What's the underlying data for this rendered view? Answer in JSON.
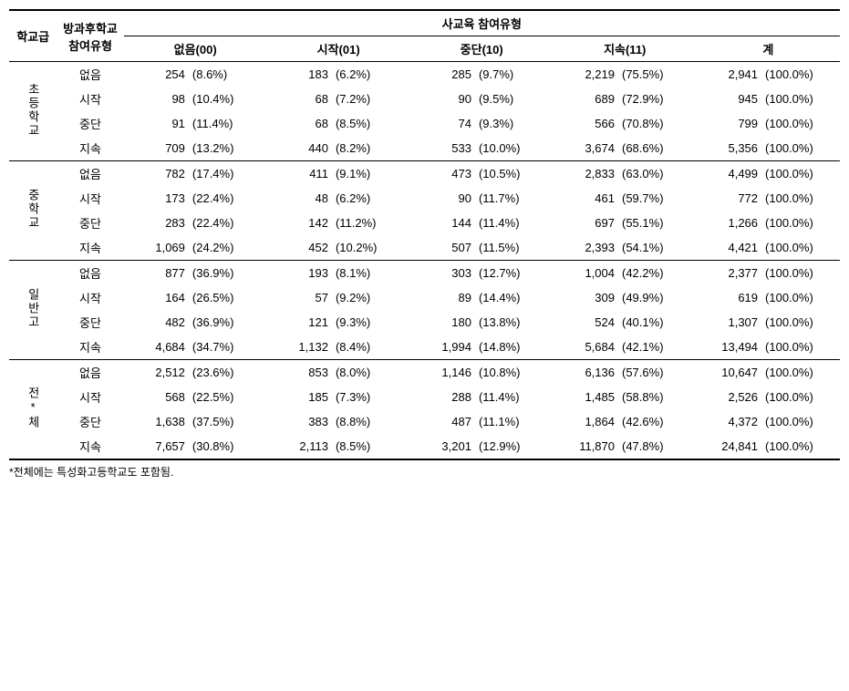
{
  "headers": {
    "level": "학교급",
    "afterSchoolType": "방과후학교 참여유형",
    "privateEduType": "사교육 참여유형",
    "none": "없음(00)",
    "start": "시작(01)",
    "stop": "중단(10)",
    "continue": "지속(11)",
    "total": "계"
  },
  "rowLabels": {
    "none": "없음",
    "start": "시작",
    "stop": "중단",
    "continue": "지속"
  },
  "levels": {
    "elementary": "초등학교",
    "middle": "중학교",
    "generalHigh": "일반고",
    "all": "전*체"
  },
  "data": {
    "elementary": {
      "none": {
        "c0n": "254",
        "c0p": "(8.6%)",
        "c1n": "183",
        "c1p": "(6.2%)",
        "c2n": "285",
        "c2p": "(9.7%)",
        "c3n": "2,219",
        "c3p": "(75.5%)",
        "c4n": "2,941",
        "c4p": "(100.0%)"
      },
      "start": {
        "c0n": "98",
        "c0p": "(10.4%)",
        "c1n": "68",
        "c1p": "(7.2%)",
        "c2n": "90",
        "c2p": "(9.5%)",
        "c3n": "689",
        "c3p": "(72.9%)",
        "c4n": "945",
        "c4p": "(100.0%)"
      },
      "stop": {
        "c0n": "91",
        "c0p": "(11.4%)",
        "c1n": "68",
        "c1p": "(8.5%)",
        "c2n": "74",
        "c2p": "(9.3%)",
        "c3n": "566",
        "c3p": "(70.8%)",
        "c4n": "799",
        "c4p": "(100.0%)"
      },
      "continue": {
        "c0n": "709",
        "c0p": "(13.2%)",
        "c1n": "440",
        "c1p": "(8.2%)",
        "c2n": "533",
        "c2p": "(10.0%)",
        "c3n": "3,674",
        "c3p": "(68.6%)",
        "c4n": "5,356",
        "c4p": "(100.0%)"
      }
    },
    "middle": {
      "none": {
        "c0n": "782",
        "c0p": "(17.4%)",
        "c1n": "411",
        "c1p": "(9.1%)",
        "c2n": "473",
        "c2p": "(10.5%)",
        "c3n": "2,833",
        "c3p": "(63.0%)",
        "c4n": "4,499",
        "c4p": "(100.0%)"
      },
      "start": {
        "c0n": "173",
        "c0p": "(22.4%)",
        "c1n": "48",
        "c1p": "(6.2%)",
        "c2n": "90",
        "c2p": "(11.7%)",
        "c3n": "461",
        "c3p": "(59.7%)",
        "c4n": "772",
        "c4p": "(100.0%)"
      },
      "stop": {
        "c0n": "283",
        "c0p": "(22.4%)",
        "c1n": "142",
        "c1p": "(11.2%)",
        "c2n": "144",
        "c2p": "(11.4%)",
        "c3n": "697",
        "c3p": "(55.1%)",
        "c4n": "1,266",
        "c4p": "(100.0%)"
      },
      "continue": {
        "c0n": "1,069",
        "c0p": "(24.2%)",
        "c1n": "452",
        "c1p": "(10.2%)",
        "c2n": "507",
        "c2p": "(11.5%)",
        "c3n": "2,393",
        "c3p": "(54.1%)",
        "c4n": "4,421",
        "c4p": "(100.0%)"
      }
    },
    "generalHigh": {
      "none": {
        "c0n": "877",
        "c0p": "(36.9%)",
        "c1n": "193",
        "c1p": "(8.1%)",
        "c2n": "303",
        "c2p": "(12.7%)",
        "c3n": "1,004",
        "c3p": "(42.2%)",
        "c4n": "2,377",
        "c4p": "(100.0%)"
      },
      "start": {
        "c0n": "164",
        "c0p": "(26.5%)",
        "c1n": "57",
        "c1p": "(9.2%)",
        "c2n": "89",
        "c2p": "(14.4%)",
        "c3n": "309",
        "c3p": "(49.9%)",
        "c4n": "619",
        "c4p": "(100.0%)"
      },
      "stop": {
        "c0n": "482",
        "c0p": "(36.9%)",
        "c1n": "121",
        "c1p": "(9.3%)",
        "c2n": "180",
        "c2p": "(13.8%)",
        "c3n": "524",
        "c3p": "(40.1%)",
        "c4n": "1,307",
        "c4p": "(100.0%)"
      },
      "continue": {
        "c0n": "4,684",
        "c0p": "(34.7%)",
        "c1n": "1,132",
        "c1p": "(8.4%)",
        "c2n": "1,994",
        "c2p": "(14.8%)",
        "c3n": "5,684",
        "c3p": "(42.1%)",
        "c4n": "13,494",
        "c4p": "(100.0%)"
      }
    },
    "all": {
      "none": {
        "c0n": "2,512",
        "c0p": "(23.6%)",
        "c1n": "853",
        "c1p": "(8.0%)",
        "c2n": "1,146",
        "c2p": "(10.8%)",
        "c3n": "6,136",
        "c3p": "(57.6%)",
        "c4n": "10,647",
        "c4p": "(100.0%)"
      },
      "start": {
        "c0n": "568",
        "c0p": "(22.5%)",
        "c1n": "185",
        "c1p": "(7.3%)",
        "c2n": "288",
        "c2p": "(11.4%)",
        "c3n": "1,485",
        "c3p": "(58.8%)",
        "c4n": "2,526",
        "c4p": "(100.0%)"
      },
      "stop": {
        "c0n": "1,638",
        "c0p": "(37.5%)",
        "c1n": "383",
        "c1p": "(8.8%)",
        "c2n": "487",
        "c2p": "(11.1%)",
        "c3n": "1,864",
        "c3p": "(42.6%)",
        "c4n": "4,372",
        "c4p": "(100.0%)"
      },
      "continue": {
        "c0n": "7,657",
        "c0p": "(30.8%)",
        "c1n": "2,113",
        "c1p": "(8.5%)",
        "c2n": "3,201",
        "c2p": "(12.9%)",
        "c3n": "11,870",
        "c3p": "(47.8%)",
        "c4n": "24,841",
        "c4p": "(100.0%)"
      }
    }
  },
  "footnote": "*전체에는 특성화고등학교도 포함됨."
}
